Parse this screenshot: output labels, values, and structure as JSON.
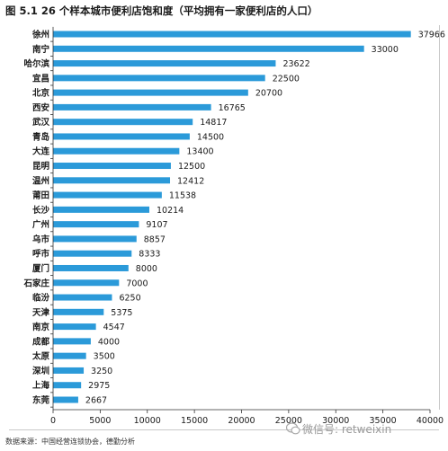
{
  "title": "图 5.1 26 个样本城市便利店饱和度（平均拥有一家便利店的人口）",
  "source": "数据来源：中国经营连锁协会，德勤分析",
  "watermark": "微信号: retweixin",
  "colors": {
    "bar": "#2B9AD9",
    "axis": "#333333"
  },
  "chart_data": {
    "type": "bar",
    "orientation": "horizontal",
    "title": "图 5.1 26 个样本城市便利店饱和度（平均拥有一家便利店的人口）",
    "xlabel": "",
    "ylabel": "",
    "xlim": [
      0,
      40000
    ],
    "xticks": [
      0,
      5000,
      10000,
      15000,
      20000,
      25000,
      30000,
      35000,
      40000
    ],
    "categories": [
      "徐州",
      "南宁",
      "哈尔滨",
      "宜昌",
      "北京",
      "西安",
      "武汉",
      "青岛",
      "大连",
      "昆明",
      "温州",
      "莆田",
      "长沙",
      "广州",
      "乌市",
      "呼市",
      "厦门",
      "石家庄",
      "临汾",
      "天津",
      "南京",
      "成都",
      "太原",
      "深圳",
      "上海",
      "东莞"
    ],
    "values": [
      37966,
      33000,
      23622,
      22500,
      20700,
      16765,
      14817,
      14500,
      13400,
      12500,
      12412,
      11538,
      10214,
      9107,
      8857,
      8333,
      8000,
      7000,
      6250,
      5375,
      4547,
      4000,
      3500,
      3250,
      2975,
      2667
    ],
    "grid": false,
    "legend": "none"
  }
}
